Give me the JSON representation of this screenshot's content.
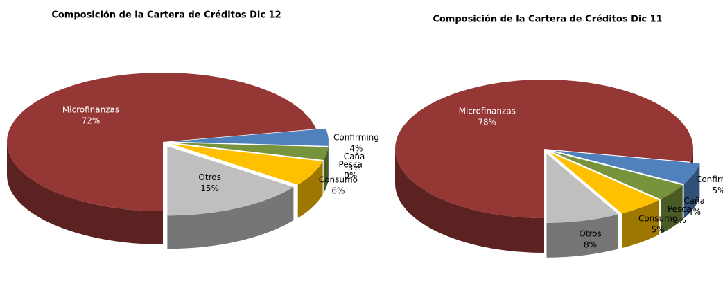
{
  "chart_data": [
    {
      "type": "pie",
      "title": "Composición de la Cartera de Créditos  Dic 12",
      "categories": [
        "Microfinanzas",
        "Confirming",
        "Caña",
        "Pesca",
        "Consumo",
        "Otros"
      ],
      "values": [
        72,
        4,
        3,
        0,
        6,
        15
      ],
      "value_labels": [
        "72%",
        "4%",
        "3%",
        "0%",
        "6%",
        "15%"
      ],
      "colors": [
        "#953735",
        "#4f81bd",
        "#77933c",
        "#403152",
        "#ffc000",
        "#bfbfbf"
      ]
    },
    {
      "type": "pie",
      "title": "Composición de la Cartera de Créditos  Dic 11",
      "categories": [
        "Microfinanzas",
        "Confirming",
        "Caña",
        "Pesca",
        "Consumo",
        "Otros"
      ],
      "values": [
        78,
        5,
        4,
        0,
        5,
        8
      ],
      "value_labels": [
        "78%",
        "5%",
        "4%",
        "0%",
        "5%",
        "8%"
      ],
      "colors": [
        "#953735",
        "#4f81bd",
        "#77933c",
        "#403152",
        "#ffc000",
        "#bfbfbf"
      ]
    }
  ]
}
